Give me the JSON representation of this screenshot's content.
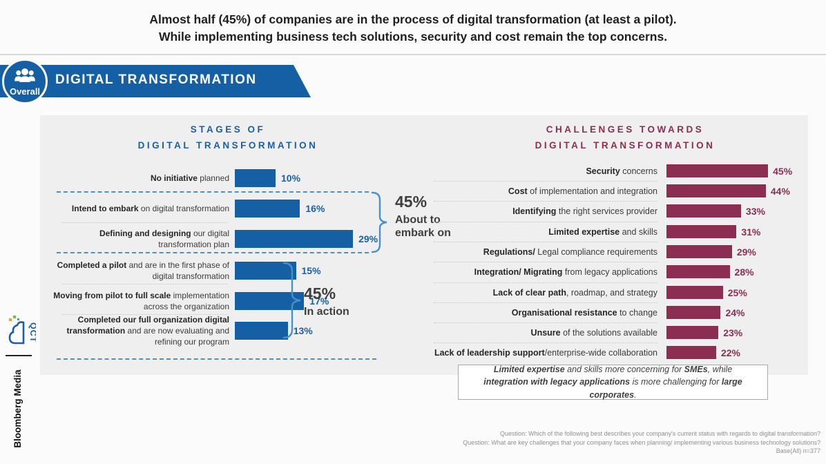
{
  "header": {
    "line1": "Almost half (45%) of companies are in the process of digital transformation (at least a pilot).",
    "line2": "While implementing business tech solutions, security and cost remain the top concerns."
  },
  "banner": {
    "title": "DIGITAL TRANSFORMATION",
    "badge_label": "Overall"
  },
  "sidebar": {
    "qct_text": "QCT",
    "brand": "Bloomberg Media"
  },
  "icons": {
    "badge": "people-group-icon",
    "logo": "qct-cloud-logo"
  },
  "colors": {
    "blue": "#1560a4",
    "maroon": "#8c2d52",
    "light_blue": "#4a90c9"
  },
  "left_chart": {
    "title1": "STAGES OF",
    "title2": "DIGITAL TRANSFORMATION",
    "rows": [
      {
        "bold": "No initiative",
        "rest": " planned",
        "value": 10,
        "pct": "10%"
      },
      {
        "bold": "Intend to embark",
        "rest": " on digital transformation",
        "value": 16,
        "pct": "16%"
      },
      {
        "bold": "Defining and designing",
        "rest": " our digital transformation plan",
        "value": 29,
        "pct": "29%"
      },
      {
        "bold": "Completed a pilot",
        "rest": " and are in the first phase of digital transformation",
        "value": 15,
        "pct": "15%"
      },
      {
        "bold": "Moving from pilot to full scale",
        "rest": " implementation across the organization",
        "value": 17,
        "pct": "17%"
      },
      {
        "bold": "Completed our full organization digital transformation",
        "rest": " and are now evaluating and refining our program",
        "value": 13,
        "pct": "13%"
      }
    ],
    "brackets": [
      {
        "pct": "45%",
        "label1": "About to",
        "label2": "embark on"
      },
      {
        "pct": "45%",
        "label1": "In action",
        "label2": ""
      }
    ]
  },
  "right_chart": {
    "title1": "CHALLENGES TOWARDS",
    "title2": "DIGITAL TRANSFORMATION",
    "rows": [
      {
        "bold": "Security",
        "rest": " concerns",
        "value": 45,
        "pct": "45%"
      },
      {
        "bold": "Cost",
        "rest": " of implementation and integration",
        "value": 44,
        "pct": "44%"
      },
      {
        "bold": "Identifying",
        "rest": " the right services provider",
        "value": 33,
        "pct": "33%"
      },
      {
        "bold": "Limited expertise",
        "rest": " and skills",
        "value": 31,
        "pct": "31%"
      },
      {
        "bold": "Regulations/",
        "rest": " Legal compliance requirements",
        "value": 29,
        "pct": "29%"
      },
      {
        "bold": "Integration/ Migrating",
        "rest": " from legacy applications",
        "value": 28,
        "pct": "28%"
      },
      {
        "bold": "Lack of clear path",
        "rest": ", roadmap, and strategy",
        "value": 25,
        "pct": "25%"
      },
      {
        "bold": "Organisational resistance",
        "rest": " to change",
        "value": 24,
        "pct": "24%"
      },
      {
        "bold": "Unsure",
        "rest": " of the solutions available",
        "value": 23,
        "pct": "23%"
      },
      {
        "bold": "Lack of leadership support",
        "rest": "/enterprise-wide collaboration",
        "value": 22,
        "pct": "22%"
      }
    ]
  },
  "note": {
    "parts": [
      "Limited expertise",
      " and skills more concerning for ",
      "SMEs",
      ", while ",
      "integration with legacy applications",
      " is more challenging for ",
      "large corporates",
      "."
    ]
  },
  "footer": {
    "q1": "Question: Which of the following best describes your company's current status with regards to digital transformation?",
    "q2": "Question: What are key challenges that your company faces when planning/ implementing various business technology solutions?",
    "base": "Base(All) n=377"
  },
  "chart_data": [
    {
      "type": "bar",
      "orientation": "horizontal",
      "title": "STAGES OF DIGITAL TRANSFORMATION",
      "categories": [
        "No initiative planned",
        "Intend to embark on digital transformation",
        "Defining and designing our digital transformation plan",
        "Completed a pilot and are in the first phase of digital transformation",
        "Moving from pilot to full scale implementation across the organization",
        "Completed our full organization digital transformation and are now evaluating and refining our program"
      ],
      "values": [
        10,
        16,
        29,
        15,
        17,
        13
      ],
      "unit": "%",
      "bar_color": "#1560a4",
      "annotations": [
        {
          "group": [
            "Intend to embark",
            "Defining and designing"
          ],
          "total": "45%",
          "label": "About to embark on"
        },
        {
          "group": [
            "Completed a pilot",
            "Moving from pilot to full scale",
            "Completed our full organization"
          ],
          "total": "45%",
          "label": "In action"
        }
      ],
      "grid": false,
      "legend": "none"
    },
    {
      "type": "bar",
      "orientation": "horizontal",
      "title": "CHALLENGES TOWARDS DIGITAL TRANSFORMATION",
      "categories": [
        "Security concerns",
        "Cost of implementation and integration",
        "Identifying the right services provider",
        "Limited expertise and skills",
        "Regulations/ Legal compliance requirements",
        "Integration/ Migrating from legacy applications",
        "Lack of clear path, roadmap, and strategy",
        "Organisational resistance to change",
        "Unsure of the solutions available",
        "Lack of leadership support/enterprise-wide collaboration"
      ],
      "values": [
        45,
        44,
        33,
        31,
        29,
        28,
        25,
        24,
        23,
        22
      ],
      "unit": "%",
      "bar_color": "#8c2d52",
      "grid": false,
      "legend": "none"
    }
  ]
}
